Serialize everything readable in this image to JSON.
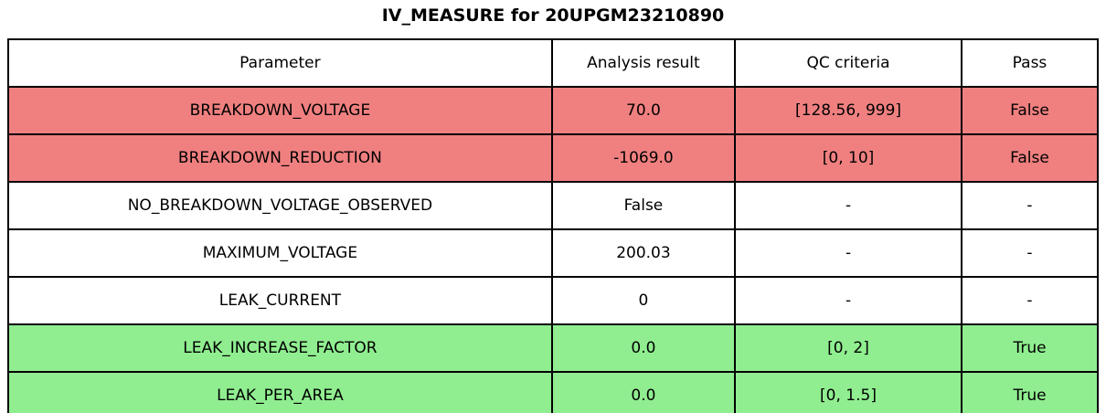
{
  "title": "IV_MEASURE for 20UPGM23210890",
  "colors": {
    "fail_row_background": "#f08080",
    "pass_row_background": "#90ee90",
    "neutral_row_background": "#ffffff",
    "border": "#000000",
    "text": "#000000"
  },
  "chart_data": {
    "type": "table",
    "title": "IV_MEASURE for 20UPGM23210890",
    "columns": [
      "Parameter",
      "Analysis result",
      "QC criteria",
      "Pass"
    ],
    "rows": [
      {
        "parameter": "BREAKDOWN_VOLTAGE",
        "analysis_result": "70.0",
        "qc_criteria": "[128.56, 999]",
        "pass": "False",
        "status": "fail"
      },
      {
        "parameter": "BREAKDOWN_REDUCTION",
        "analysis_result": "-1069.0",
        "qc_criteria": "[0, 10]",
        "pass": "False",
        "status": "fail"
      },
      {
        "parameter": "NO_BREAKDOWN_VOLTAGE_OBSERVED",
        "analysis_result": "False",
        "qc_criteria": "-",
        "pass": "-",
        "status": "none"
      },
      {
        "parameter": "MAXIMUM_VOLTAGE",
        "analysis_result": "200.03",
        "qc_criteria": "-",
        "pass": "-",
        "status": "none"
      },
      {
        "parameter": "LEAK_CURRENT",
        "analysis_result": "0",
        "qc_criteria": "-",
        "pass": "-",
        "status": "none"
      },
      {
        "parameter": "LEAK_INCREASE_FACTOR",
        "analysis_result": "0.0",
        "qc_criteria": "[0, 2]",
        "pass": "True",
        "status": "pass"
      },
      {
        "parameter": "LEAK_PER_AREA",
        "analysis_result": "0.0",
        "qc_criteria": "[0, 1.5]",
        "pass": "True",
        "status": "pass"
      }
    ]
  }
}
